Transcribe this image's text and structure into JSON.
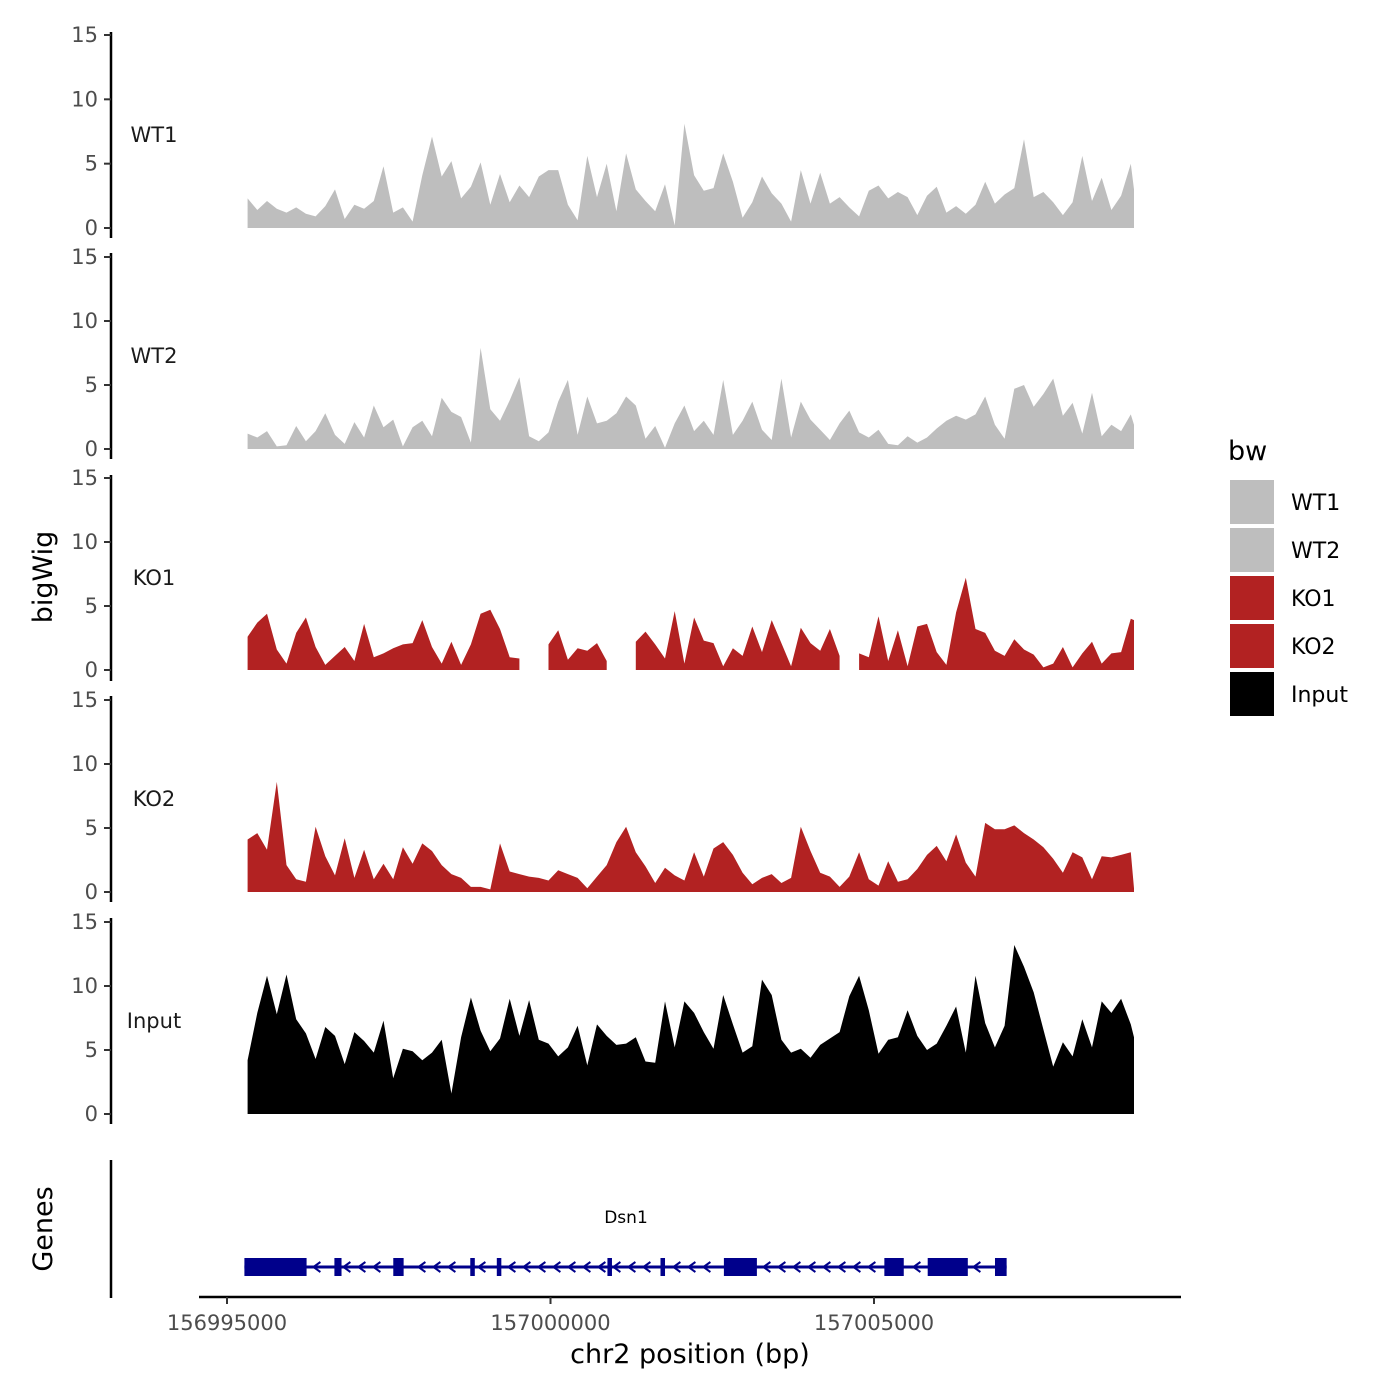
{
  "chart_data": {
    "type": "area",
    "title": "",
    "xlabel": "chr2 position (bp)",
    "ylabel": "bigWig",
    "genes_label": "Genes",
    "xlim": [
      156993800,
      157009800
    ],
    "x_ticks": [
      156995000,
      157000000,
      157005000
    ],
    "x_tick_labels": [
      "156995000",
      "157000000",
      "157005000"
    ],
    "ylim": [
      0,
      15
    ],
    "y_ticks": [
      0,
      5,
      10,
      15
    ],
    "y_tick_labels": [
      "0",
      "5",
      "10",
      "15"
    ],
    "legend": {
      "title": "bw",
      "position": "right",
      "entries": [
        {
          "label": "WT1",
          "color": "#BEBEBE"
        },
        {
          "label": "WT2",
          "color": "#BEBEBE"
        },
        {
          "label": "KO1",
          "color": "#B22222"
        },
        {
          "label": "KO2",
          "color": "#B22222"
        },
        {
          "label": "Input",
          "color": "#000000"
        }
      ]
    },
    "x": [
      156995319,
      156995469,
      156995619,
      156995769,
      156995919,
      156996069,
      156996219,
      156996369,
      156996519,
      156996669,
      156996819,
      156996969,
      156997119,
      156997269,
      156997419,
      156997569,
      156997719,
      156997869,
      156998019,
      156998169,
      156998319,
      156998469,
      156998619,
      156998769,
      156998919,
      156999069,
      156999219,
      156999369,
      156999519,
      156999669,
      156999819,
      156999969,
      157000119,
      157000269,
      157000419,
      157000569,
      157000719,
      157000869,
      157001019,
      157001169,
      157001319,
      157001469,
      157001619,
      157001769,
      157001919,
      157002069,
      157002219,
      157002369,
      157002519,
      157002669,
      157002819,
      157002969,
      157003119,
      157003269,
      157003419,
      157003569,
      157003719,
      157003869,
      157004019,
      157004169,
      157004319,
      157004469,
      157004619,
      157004769,
      157004919,
      157005069,
      157005219,
      157005369,
      157005519,
      157005669,
      157005819,
      157005969,
      157006119,
      157006269,
      157006419,
      157006569,
      157006719,
      157006869,
      157007019,
      157007169,
      157007319,
      157007469,
      157007619,
      157007769,
      157007919,
      157008069,
      157008219,
      157008369,
      157008519,
      157008669,
      157008819,
      157008969,
      157009019
    ],
    "series": [
      {
        "name": "WT1",
        "color": "#BEBEBE",
        "values": [
          2.3,
          1.4,
          2.1,
          1.5,
          1.2,
          1.6,
          1.1,
          0.9,
          1.7,
          3.0,
          0.7,
          1.8,
          1.5,
          2.1,
          4.8,
          1.2,
          1.6,
          0.5,
          4.1,
          7.1,
          4.0,
          5.2,
          2.3,
          3.2,
          5.1,
          1.8,
          4.2,
          2.0,
          3.3,
          2.4,
          4.0,
          4.5,
          4.5,
          1.8,
          0.6,
          5.6,
          2.4,
          5.0,
          1.3,
          5.8,
          3.0,
          2.1,
          1.3,
          3.4,
          0.2,
          8.1,
          4.1,
          2.9,
          3.1,
          5.8,
          3.6,
          0.8,
          2.0,
          4.0,
          2.7,
          1.9,
          0.5,
          4.5,
          1.9,
          4.3,
          1.9,
          2.4,
          1.6,
          0.9,
          2.9,
          3.3,
          2.3,
          2.8,
          2.4,
          1.0,
          2.5,
          3.2,
          1.2,
          1.7,
          1.1,
          1.8,
          3.6,
          1.9,
          2.6,
          3.1,
          6.9,
          2.4,
          2.8,
          2.0,
          1.0,
          2.0,
          5.6,
          2.1,
          3.9,
          1.4,
          2.5,
          5.0,
          3.0
        ]
      },
      {
        "name": "WT2",
        "color": "#BEBEBE",
        "values": [
          1.2,
          0.9,
          1.4,
          0.2,
          0.3,
          1.8,
          0.6,
          1.4,
          2.8,
          1.1,
          0.4,
          2.1,
          0.9,
          3.4,
          1.7,
          2.3,
          0.2,
          1.7,
          2.2,
          1.0,
          4.0,
          2.9,
          2.5,
          0.5,
          7.9,
          3.1,
          2.2,
          3.8,
          5.6,
          1.0,
          0.6,
          1.3,
          3.7,
          5.4,
          1.1,
          4.1,
          2.0,
          2.2,
          2.8,
          4.1,
          3.4,
          0.8,
          1.8,
          0.1,
          2.0,
          3.4,
          1.4,
          2.2,
          1.1,
          5.4,
          1.1,
          2.2,
          3.7,
          1.5,
          0.7,
          5.5,
          0.9,
          3.7,
          2.3,
          1.5,
          0.7,
          2.0,
          3.0,
          1.3,
          0.9,
          1.5,
          0.4,
          0.3,
          1.0,
          0.5,
          0.9,
          1.6,
          2.2,
          2.6,
          2.3,
          2.7,
          4.1,
          1.9,
          0.8,
          4.7,
          5.0,
          3.3,
          4.3,
          5.5,
          2.6,
          3.6,
          1.2,
          4.4,
          1.0,
          1.9,
          1.4,
          2.7,
          1.9
        ]
      },
      {
        "name": "KO1",
        "color": "#B22222",
        "values": [
          2.6,
          3.7,
          4.4,
          1.6,
          0.5,
          2.9,
          4.1,
          1.8,
          0.4,
          1.1,
          1.8,
          0.7,
          3.6,
          1.0,
          1.3,
          1.7,
          2.0,
          2.1,
          3.9,
          1.8,
          0.5,
          2.2,
          0.4,
          2.0,
          4.4,
          4.7,
          3.2,
          1.0,
          0.9,
          null,
          null,
          2.0,
          3.1,
          0.8,
          1.7,
          1.5,
          2.1,
          0.7,
          null,
          null,
          2.2,
          3.0,
          2.0,
          0.9,
          4.6,
          0.5,
          4.1,
          2.3,
          2.1,
          0.3,
          1.7,
          1.1,
          3.4,
          1.4,
          3.9,
          2.1,
          0.3,
          3.3,
          2.1,
          1.5,
          3.2,
          1.1,
          null,
          1.3,
          1.0,
          4.2,
          0.7,
          3.1,
          0.3,
          3.4,
          3.6,
          1.4,
          0.4,
          4.5,
          7.2,
          3.2,
          2.9,
          1.5,
          1.1,
          2.4,
          1.6,
          1.2,
          0.2,
          0.5,
          1.8,
          0.2,
          1.3,
          2.2,
          0.5,
          1.3,
          1.4,
          4.0,
          3.9
        ]
      },
      {
        "name": "KO2",
        "color": "#B22222",
        "values": [
          4.1,
          4.6,
          3.3,
          8.6,
          2.1,
          1.0,
          0.8,
          5.1,
          2.8,
          1.3,
          4.2,
          1.1,
          3.3,
          1.0,
          2.2,
          1.0,
          3.5,
          2.2,
          3.8,
          3.2,
          2.1,
          1.4,
          1.1,
          0.4,
          0.4,
          0.2,
          3.8,
          1.6,
          1.4,
          1.2,
          1.1,
          0.9,
          1.7,
          1.4,
          1.1,
          0.3,
          1.2,
          2.1,
          3.9,
          5.1,
          3.1,
          2.0,
          0.7,
          1.9,
          1.3,
          0.9,
          3.1,
          1.2,
          3.4,
          3.9,
          2.9,
          1.5,
          0.6,
          1.1,
          1.4,
          0.7,
          1.1,
          5.1,
          3.2,
          1.5,
          1.2,
          0.4,
          1.2,
          3.1,
          1.0,
          0.5,
          2.4,
          0.8,
          1.0,
          1.8,
          2.9,
          3.6,
          2.4,
          4.5,
          2.3,
          1.2,
          5.4,
          4.9,
          4.9,
          5.2,
          4.6,
          4.1,
          3.5,
          2.6,
          1.5,
          3.1,
          2.7,
          1.0,
          2.8,
          2.7,
          2.9,
          3.1,
          0.3
        ]
      },
      {
        "name": "Input",
        "color": "#000000",
        "values": [
          4.2,
          7.9,
          10.8,
          7.8,
          10.9,
          7.4,
          6.3,
          4.3,
          6.8,
          6.1,
          3.9,
          6.4,
          5.7,
          4.8,
          7.3,
          2.8,
          5.1,
          4.9,
          4.2,
          4.8,
          5.8,
          1.6,
          6.0,
          9.1,
          6.5,
          4.9,
          5.9,
          9.0,
          6.1,
          8.9,
          5.8,
          5.5,
          4.5,
          5.2,
          6.9,
          3.8,
          7.0,
          6.1,
          5.4,
          5.5,
          6.0,
          4.1,
          4.0,
          8.8,
          5.2,
          8.8,
          7.9,
          6.4,
          5.1,
          9.3,
          7.0,
          4.8,
          5.3,
          10.5,
          9.3,
          5.8,
          4.8,
          5.1,
          4.4,
          5.4,
          5.9,
          6.4,
          9.2,
          10.8,
          8.1,
          4.7,
          5.8,
          6.0,
          8.1,
          6.1,
          5.0,
          5.5,
          6.9,
          8.4,
          4.8,
          10.8,
          7.1,
          5.2,
          6.9,
          13.2,
          11.5,
          9.5,
          6.6,
          3.7,
          5.6,
          4.5,
          7.4,
          5.2,
          8.8,
          7.9,
          9.0,
          7.0,
          6.0
        ]
      }
    ],
    "gene_track": {
      "gene_name": "Dsn1",
      "strand": "-",
      "start": 156995269,
      "end": 157007050,
      "exons": [
        [
          156995269,
          156996230
        ],
        [
          156996660,
          156996770
        ],
        [
          156997570,
          156997730
        ],
        [
          156998760,
          156998830
        ],
        [
          156999170,
          156999240
        ],
        [
          157000880,
          157000950
        ],
        [
          157001700,
          157001770
        ],
        [
          157002680,
          157003190
        ],
        [
          157005160,
          157005460
        ],
        [
          157005830,
          157006450
        ],
        [
          157006870,
          157007050
        ]
      ]
    }
  }
}
